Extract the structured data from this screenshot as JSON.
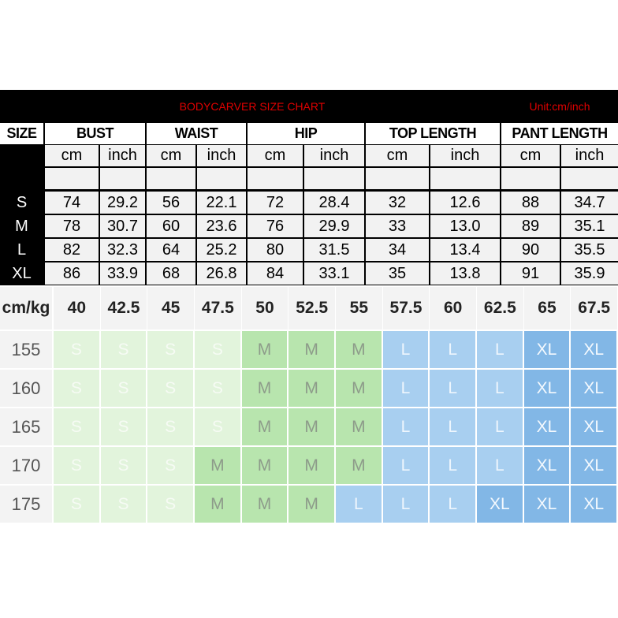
{
  "header": {
    "title": "BODYCARVER SIZE CHART",
    "unit": "Unit:cm/inch"
  },
  "size_table": {
    "corner": "SIZE",
    "groups": [
      "BUST",
      "WAIST",
      "HIP",
      "TOP LENGTH",
      "PANT LENGTH"
    ],
    "subheaders": [
      "cm",
      "inch",
      "cm",
      "inch",
      "cm",
      "inch",
      "cm",
      "inch",
      "cm",
      "inch"
    ],
    "rows": [
      {
        "size": "S",
        "values": [
          "74",
          "29.2",
          "56",
          "22.1",
          "72",
          "28.4",
          "32",
          "12.6",
          "88",
          "34.7"
        ]
      },
      {
        "size": "M",
        "values": [
          "78",
          "30.7",
          "60",
          "23.6",
          "76",
          "29.9",
          "33",
          "13.0",
          "89",
          "35.1"
        ]
      },
      {
        "size": "L",
        "values": [
          "82",
          "32.3",
          "64",
          "25.2",
          "80",
          "31.5",
          "34",
          "13.4",
          "90",
          "35.5"
        ]
      },
      {
        "size": "XL",
        "values": [
          "86",
          "33.9",
          "68",
          "26.8",
          "84",
          "33.1",
          "35",
          "13.8",
          "91",
          "35.9"
        ]
      }
    ]
  },
  "fit_table": {
    "corner": "cm/kg",
    "weights": [
      "40",
      "42.5",
      "45",
      "47.5",
      "50",
      "52.5",
      "55",
      "57.5",
      "60",
      "62.5",
      "65",
      "67.5"
    ],
    "rows": [
      {
        "height": "155",
        "sizes": [
          "S",
          "S",
          "S",
          "S",
          "M",
          "M",
          "M",
          "L",
          "L",
          "L",
          "XL",
          "XL"
        ]
      },
      {
        "height": "160",
        "sizes": [
          "S",
          "S",
          "S",
          "S",
          "M",
          "M",
          "M",
          "L",
          "L",
          "L",
          "XL",
          "XL"
        ]
      },
      {
        "height": "165",
        "sizes": [
          "S",
          "S",
          "S",
          "S",
          "M",
          "M",
          "M",
          "L",
          "L",
          "L",
          "XL",
          "XL"
        ]
      },
      {
        "height": "170",
        "sizes": [
          "S",
          "S",
          "S",
          "M",
          "M",
          "M",
          "M",
          "L",
          "L",
          "L",
          "XL",
          "XL"
        ]
      },
      {
        "height": "175",
        "sizes": [
          "S",
          "S",
          "S",
          "M",
          "M",
          "M",
          "L",
          "L",
          "L",
          "XL",
          "XL",
          "XL"
        ]
      }
    ],
    "fill_colors": {
      "S": "#e2f4dc",
      "M": "#b8e5ae",
      "L": "#a8cff0",
      "XL": "#82b7e6"
    },
    "text_colors": {
      "S": "#f6fbf4",
      "M": "#8d9b8a",
      "L": "#eef6fd",
      "XL": "#f4f9fe"
    }
  }
}
